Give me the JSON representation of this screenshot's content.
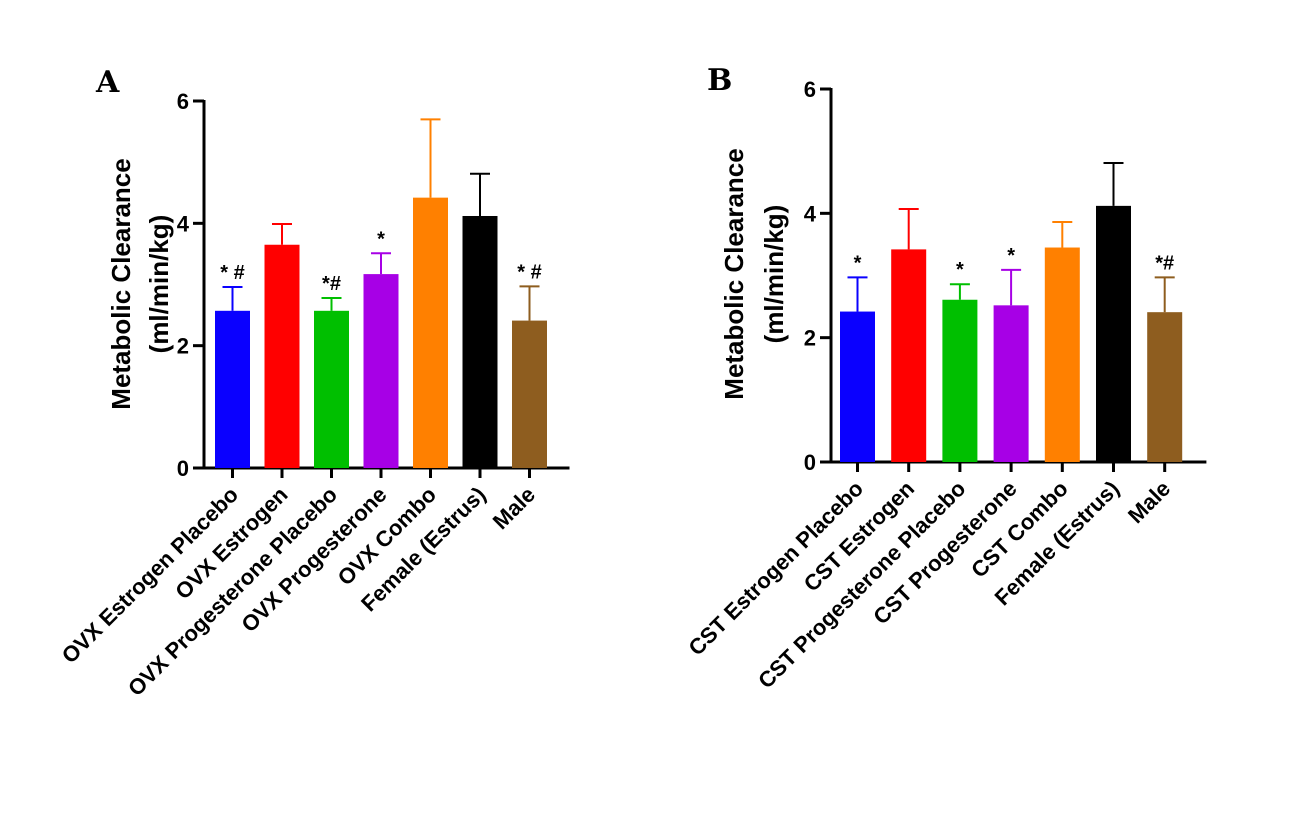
{
  "chart_data": [
    {
      "panel": "A",
      "type": "bar",
      "ylabel_line1": "Metabolic Clearance",
      "ylabel_line2": "(ml/min/kg)",
      "ylim": [
        0,
        6
      ],
      "yticks": [
        0,
        2,
        4,
        6
      ],
      "categories": [
        "OVX Estrogen Placebo",
        "OVX Estrogen",
        "OVX Progesterone Placebo",
        "OVX Progesterone",
        "OVX Combo",
        "Female (Estrus)",
        "Male"
      ],
      "values": [
        2.57,
        3.65,
        2.57,
        3.17,
        4.42,
        4.12,
        2.41
      ],
      "errors": [
        0.39,
        0.34,
        0.21,
        0.34,
        1.28,
        0.69,
        0.56
      ],
      "colors": [
        "#0a00ff",
        "#ff0000",
        "#00bf00",
        "#a700e6",
        "#ff8000",
        "#000000",
        "#8e5d1f"
      ],
      "annotations": [
        "* #",
        "",
        "*#",
        "*",
        "",
        "",
        "* #"
      ]
    },
    {
      "panel": "B",
      "type": "bar",
      "ylabel_line1": "Metabolic Clearance",
      "ylabel_line2": "(ml/min/kg)",
      "ylim": [
        0,
        6
      ],
      "yticks": [
        0,
        2,
        4,
        6
      ],
      "categories": [
        "CST Estrogen Placebo",
        "CST Estrogen",
        "CST Progesterone Placebo",
        "CST Progesterone",
        "CST Combo",
        "Female (Estrus)",
        "Male"
      ],
      "values": [
        2.42,
        3.42,
        2.61,
        2.52,
        3.45,
        4.12,
        2.41
      ],
      "errors": [
        0.55,
        0.65,
        0.25,
        0.57,
        0.41,
        0.69,
        0.56
      ],
      "colors": [
        "#0a00ff",
        "#ff0000",
        "#00bf00",
        "#a700e6",
        "#ff8000",
        "#000000",
        "#8e5d1f"
      ],
      "annotations": [
        "*",
        "",
        "*",
        "*",
        "",
        "",
        "*#"
      ]
    }
  ]
}
